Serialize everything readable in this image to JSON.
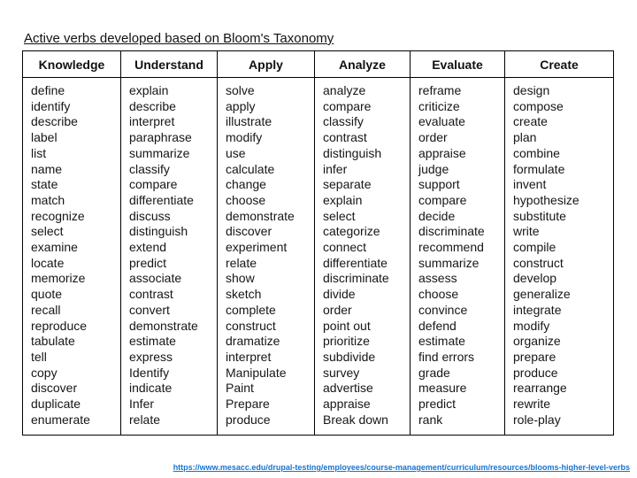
{
  "title": "Active verbs developed based on Bloom's Taxonomy",
  "table": {
    "columns": [
      {
        "header": "Knowledge",
        "verbs": [
          "define",
          "identify",
          "describe",
          "label",
          "list",
          "name",
          "state",
          "match",
          "recognize",
          "select",
          "examine",
          "locate",
          "memorize",
          "quote",
          "recall",
          "reproduce",
          "tabulate",
          "tell",
          "copy",
          "discover",
          "duplicate",
          "enumerate"
        ]
      },
      {
        "header": "Understand",
        "verbs": [
          "explain",
          "describe",
          "interpret",
          "paraphrase",
          "summarize",
          "classify",
          "compare",
          "differentiate",
          "discuss",
          "distinguish",
          "extend",
          "predict",
          "associate",
          "contrast",
          "convert",
          "demonstrate",
          "estimate",
          "express",
          "Identify",
          "indicate",
          "Infer",
          "relate"
        ]
      },
      {
        "header": "Apply",
        "verbs": [
          "solve",
          "apply",
          "illustrate",
          "modify",
          "use",
          "calculate",
          "change",
          "choose",
          "demonstrate",
          "discover",
          "experiment",
          "relate",
          "show",
          "sketch",
          "complete",
          "construct",
          "dramatize",
          "interpret",
          "Manipulate",
          "Paint",
          "Prepare",
          "produce"
        ]
      },
      {
        "header": "Analyze",
        "verbs": [
          "analyze",
          "compare",
          "classify",
          "contrast",
          "distinguish",
          "infer",
          "separate",
          "explain",
          "select",
          "categorize",
          "connect",
          "differentiate",
          "discriminate",
          "divide",
          "order",
          "point out",
          "prioritize",
          "subdivide",
          "survey",
          "advertise",
          "appraise",
          "Break down"
        ]
      },
      {
        "header": "Evaluate",
        "verbs": [
          "reframe",
          "criticize",
          "evaluate",
          "order",
          "appraise",
          "judge",
          "support",
          "compare",
          "decide",
          "discriminate",
          "recommend",
          "summarize",
          "assess",
          "choose",
          "convince",
          "defend",
          "estimate",
          "find errors",
          "grade",
          "measure",
          "predict",
          "rank"
        ]
      },
      {
        "header": "Create",
        "verbs": [
          "design",
          "compose",
          "create",
          "plan",
          "combine",
          "formulate",
          "invent",
          "hypothesize",
          "substitute",
          "write",
          "compile",
          "construct",
          "develop",
          "generalize",
          "integrate",
          "modify",
          "organize",
          "prepare",
          "produce",
          "rearrange",
          "rewrite",
          "role-play"
        ]
      }
    ]
  },
  "footer": {
    "link_text": "https://www.mesacc.edu/drupal-testing/employees/course-management/curriculum/resources/blooms-higher-level-verbs",
    "link_href": "https://www.mesacc.edu/drupal-testing/employees/course-management/curriculum/resources/blooms-higher-level-verbs"
  },
  "colors": {
    "link": "#1774d1",
    "table_border": "#000000",
    "text": "#111111",
    "background": "#ffffff"
  }
}
